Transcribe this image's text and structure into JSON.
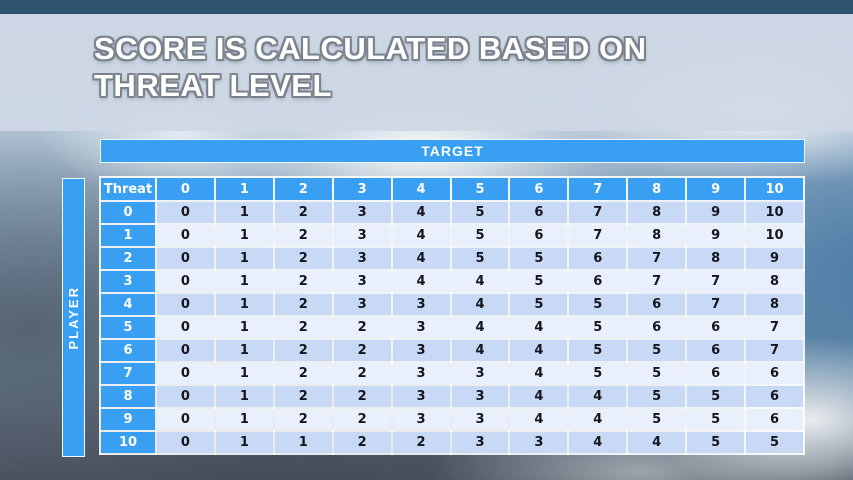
{
  "slide": {
    "title_line1": "SCORE IS CALCULATED BASED ON",
    "title_line2": "THREAT LEVEL"
  },
  "matrix": {
    "target_label": "TARGET",
    "player_label": "PLAYER",
    "corner_label": "Threat",
    "column_headers": [
      "0",
      "1",
      "2",
      "3",
      "4",
      "5",
      "6",
      "7",
      "8",
      "9",
      "10"
    ],
    "rows": [
      {
        "threat": "0",
        "values": [
          0,
          1,
          2,
          3,
          4,
          5,
          6,
          7,
          8,
          9,
          10
        ]
      },
      {
        "threat": "1",
        "values": [
          0,
          1,
          2,
          3,
          4,
          5,
          6,
          7,
          8,
          9,
          10
        ]
      },
      {
        "threat": "2",
        "values": [
          0,
          1,
          2,
          3,
          4,
          5,
          5,
          6,
          7,
          8,
          9
        ]
      },
      {
        "threat": "3",
        "values": [
          0,
          1,
          2,
          3,
          4,
          4,
          5,
          6,
          7,
          7,
          8
        ]
      },
      {
        "threat": "4",
        "values": [
          0,
          1,
          2,
          3,
          3,
          4,
          5,
          5,
          6,
          7,
          8
        ]
      },
      {
        "threat": "5",
        "values": [
          0,
          1,
          2,
          2,
          3,
          4,
          4,
          5,
          6,
          6,
          7
        ]
      },
      {
        "threat": "6",
        "values": [
          0,
          1,
          2,
          2,
          3,
          4,
          4,
          5,
          5,
          6,
          7
        ]
      },
      {
        "threat": "7",
        "values": [
          0,
          1,
          2,
          2,
          3,
          3,
          4,
          5,
          5,
          6,
          6
        ]
      },
      {
        "threat": "8",
        "values": [
          0,
          1,
          2,
          2,
          3,
          3,
          4,
          4,
          5,
          5,
          6
        ]
      },
      {
        "threat": "9",
        "values": [
          0,
          1,
          2,
          2,
          3,
          3,
          4,
          4,
          5,
          5,
          6
        ]
      },
      {
        "threat": "10",
        "values": [
          0,
          1,
          1,
          2,
          2,
          3,
          3,
          4,
          4,
          5,
          5
        ]
      }
    ]
  },
  "colors": {
    "accent_blue": "#389FF3",
    "row_even": "#C7D9F4",
    "row_odd": "#EAF0FB",
    "cell_text": "#15151F",
    "title_text": "#FFFFFF"
  }
}
